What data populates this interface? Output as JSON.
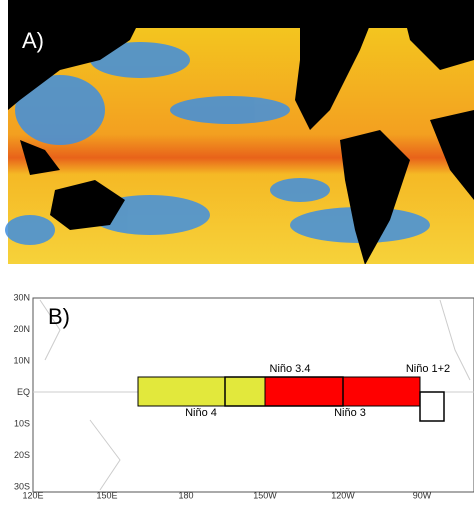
{
  "panel_a": {
    "label": "A)"
  },
  "panel_b": {
    "label": "B)",
    "lat_labels": [
      "30N",
      "20N",
      "10N",
      "EQ",
      "10S",
      "20S",
      "30S"
    ],
    "lon_labels": [
      "120E",
      "150E",
      "180",
      "150W",
      "120W",
      "90W"
    ],
    "regions": [
      {
        "label": "Niño 3.4"
      },
      {
        "label": "Niño 4"
      },
      {
        "label": "Niño 3"
      },
      {
        "label": "Niño 1+2"
      }
    ]
  }
}
